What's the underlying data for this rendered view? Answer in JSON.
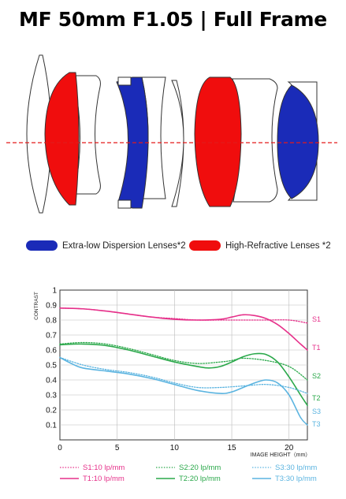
{
  "title": "MF 50mm F1.05 | Full Frame",
  "lens_legend": [
    {
      "label": "Extra-low Dispersion Lenses*2",
      "color": "#1a2bb8"
    },
    {
      "label": "High-Refractive Lenses *2",
      "color": "#f00d0d"
    }
  ],
  "colors": {
    "s1": "#e6308a",
    "t1": "#e6308a",
    "s2": "#2aa84a",
    "t2": "#2aa84a",
    "s3": "#5bb4e0",
    "t3": "#5bb4e0"
  },
  "chart_data": {
    "type": "line",
    "ylabel": "CONTRAST",
    "xlabel": "IMAGE HEIGHT（mm）",
    "xlim": [
      0,
      21.6
    ],
    "ylim": [
      0,
      1
    ],
    "xticks": [
      "0",
      "5",
      "10",
      "15",
      "20"
    ],
    "yticks": [
      "0.1",
      "0.2",
      "0.3",
      "0.4",
      "0.5",
      "0.6",
      "0.7",
      "0.8",
      "0.9",
      "1"
    ],
    "series": [
      {
        "name": "S1:10 lp/mm",
        "key": "s1",
        "style": "dotted",
        "end_label": "S1",
        "x": [
          0,
          2,
          4,
          6,
          8,
          10,
          12,
          14,
          16,
          18,
          20,
          21.6
        ],
        "y": [
          0.88,
          0.875,
          0.86,
          0.84,
          0.82,
          0.81,
          0.8,
          0.8,
          0.8,
          0.8,
          0.8,
          0.78
        ]
      },
      {
        "name": "T1:10 lp/mm",
        "key": "t1",
        "style": "solid",
        "end_label": "T1",
        "x": [
          0,
          2,
          4,
          6,
          8,
          10,
          12,
          14,
          15,
          16,
          17,
          18,
          19,
          20,
          21,
          21.6
        ],
        "y": [
          0.88,
          0.875,
          0.86,
          0.84,
          0.82,
          0.805,
          0.8,
          0.805,
          0.82,
          0.835,
          0.83,
          0.81,
          0.77,
          0.71,
          0.64,
          0.6
        ]
      },
      {
        "name": "S2:20 lp/mm",
        "key": "s2",
        "style": "dotted",
        "end_label": "S2",
        "x": [
          0,
          2,
          4,
          6,
          8,
          10,
          12,
          14,
          15,
          16,
          18,
          20,
          21.6
        ],
        "y": [
          0.64,
          0.65,
          0.64,
          0.61,
          0.57,
          0.53,
          0.51,
          0.52,
          0.53,
          0.545,
          0.53,
          0.49,
          0.4
        ]
      },
      {
        "name": "T2:20 lp/mm",
        "key": "t2",
        "style": "solid",
        "end_label": "T2",
        "x": [
          0,
          2,
          4,
          6,
          8,
          10,
          12,
          13,
          14,
          15,
          16,
          17,
          18,
          19,
          20,
          21,
          21.6
        ],
        "y": [
          0.635,
          0.64,
          0.63,
          0.6,
          0.56,
          0.52,
          0.49,
          0.48,
          0.49,
          0.52,
          0.555,
          0.575,
          0.57,
          0.52,
          0.42,
          0.3,
          0.23
        ]
      },
      {
        "name": "S3:30 lp/mm",
        "key": "s3",
        "style": "dotted",
        "end_label": "S3",
        "x": [
          0,
          2,
          4,
          6,
          8,
          10,
          12,
          14,
          16,
          18,
          20,
          21.6
        ],
        "y": [
          0.55,
          0.5,
          0.47,
          0.45,
          0.42,
          0.38,
          0.35,
          0.35,
          0.36,
          0.37,
          0.35,
          0.31
        ]
      },
      {
        "name": "T3:30 lp/mm",
        "key": "t3",
        "style": "solid",
        "end_label": "T3",
        "x": [
          0,
          1,
          2,
          4,
          6,
          8,
          10,
          12,
          14,
          15,
          16,
          17,
          18,
          19,
          20,
          21,
          21.6
        ],
        "y": [
          0.55,
          0.51,
          0.48,
          0.46,
          0.44,
          0.41,
          0.37,
          0.33,
          0.31,
          0.32,
          0.35,
          0.38,
          0.4,
          0.38,
          0.3,
          0.15,
          0.1
        ]
      }
    ]
  }
}
